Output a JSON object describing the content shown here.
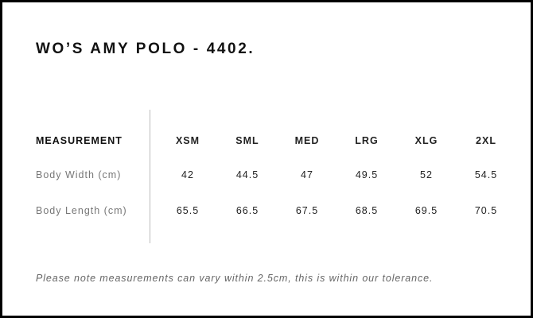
{
  "title": "WO’S AMY POLO - 4402.",
  "table": {
    "header_label": "MEASUREMENT",
    "sizes": [
      "XSM",
      "SML",
      "MED",
      "LRG",
      "XLG",
      "2XL"
    ],
    "rows": [
      {
        "label": "Body Width (cm)",
        "values": [
          "42",
          "44.5",
          "47",
          "49.5",
          "52",
          "54.5"
        ]
      },
      {
        "label": "Body Length (cm)",
        "values": [
          "65.5",
          "66.5",
          "67.5",
          "68.5",
          "69.5",
          "70.5"
        ]
      }
    ]
  },
  "note": "Please note measurements can vary within 2.5cm, this is within our tolerance."
}
